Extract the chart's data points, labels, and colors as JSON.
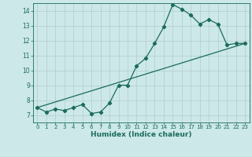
{
  "xlabel": "Humidex (Indice chaleur)",
  "xlim": [
    -0.5,
    23.5
  ],
  "ylim": [
    6.5,
    14.5
  ],
  "x_ticks": [
    0,
    1,
    2,
    3,
    4,
    5,
    6,
    7,
    8,
    9,
    10,
    11,
    12,
    13,
    14,
    15,
    16,
    17,
    18,
    19,
    20,
    21,
    22,
    23
  ],
  "y_ticks": [
    7,
    8,
    9,
    10,
    11,
    12,
    13,
    14
  ],
  "background_color": "#cce8e8",
  "grid_color": "#b0cccc",
  "line_color": "#1a6b5a",
  "series1_x": [
    0,
    1,
    2,
    3,
    4,
    5,
    6,
    7,
    8,
    9,
    10,
    11,
    12,
    13,
    14,
    15,
    16,
    17,
    18,
    19,
    20,
    21,
    22,
    23
  ],
  "series1_y": [
    7.5,
    7.2,
    7.4,
    7.3,
    7.5,
    7.7,
    7.1,
    7.2,
    7.8,
    9.0,
    9.0,
    10.3,
    10.8,
    11.8,
    12.9,
    14.4,
    14.1,
    13.7,
    13.1,
    13.4,
    13.1,
    11.7,
    11.8,
    11.8
  ],
  "series2_x": [
    0,
    23
  ],
  "series2_y": [
    7.5,
    11.8
  ],
  "marker_size": 2.2,
  "linewidth": 0.9
}
